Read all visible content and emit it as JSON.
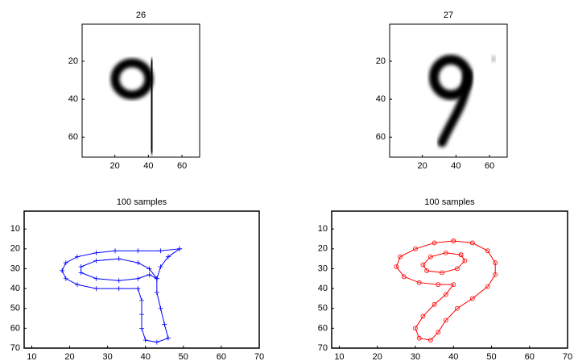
{
  "chart_data": [
    {
      "type": "image",
      "title": "26",
      "xlim": [
        0.5,
        70.5
      ],
      "ylim": [
        0.5,
        70.5
      ],
      "y_reversed": true,
      "xticks": [
        20,
        40,
        60
      ],
      "yticks": [
        20,
        40,
        60
      ]
    },
    {
      "type": "image",
      "title": "27",
      "xlim": [
        0.5,
        70.5
      ],
      "ylim": [
        0.5,
        70.5
      ],
      "y_reversed": true,
      "xticks": [
        20,
        40,
        60
      ],
      "yticks": [
        20,
        40,
        60
      ]
    },
    {
      "type": "line",
      "title": "100 samples",
      "xlim": [
        8,
        70
      ],
      "ylim": [
        1,
        70
      ],
      "y_reversed": true,
      "xticks": [
        10,
        20,
        30,
        40,
        50,
        60,
        70
      ],
      "yticks": [
        10,
        20,
        30,
        40,
        50,
        60,
        70
      ],
      "series": [
        {
          "color": "#0000ff",
          "marker": "plus",
          "x": [
            49,
            44,
            38,
            32,
            27,
            22,
            19,
            18,
            19,
            22,
            27,
            33,
            38,
            39,
            39,
            39,
            40,
            43,
            46,
            45,
            44,
            43,
            43,
            44,
            46,
            49,
            null,
            43,
            41,
            38,
            33,
            27,
            23,
            23,
            27,
            33,
            38,
            41,
            43
          ],
          "values": [
            20,
            21,
            21,
            21,
            22,
            24,
            27,
            31,
            35,
            38,
            40,
            40,
            40,
            46,
            53,
            60,
            66,
            67,
            65,
            58,
            50,
            42,
            35,
            29,
            24,
            20,
            null,
            35,
            30,
            27,
            25,
            26,
            29,
            32,
            35,
            36,
            35,
            33,
            35
          ]
        }
      ]
    },
    {
      "type": "line",
      "title": "100 samples",
      "xlim": [
        8,
        70
      ],
      "ylim": [
        1,
        70
      ],
      "y_reversed": true,
      "xticks": [
        10,
        20,
        30,
        40,
        50,
        60,
        70
      ],
      "yticks": [
        10,
        20,
        30,
        40,
        50,
        60,
        70
      ],
      "series": [
        {
          "color": "#ff0000",
          "marker": "circle",
          "x": [
            40,
            35,
            30,
            26,
            25,
            27,
            31,
            36,
            40,
            38,
            35,
            32,
            30,
            31,
            34,
            36,
            38,
            41,
            45,
            49,
            51,
            51,
            49,
            45,
            40,
            null,
            42,
            38,
            34,
            32,
            33,
            37,
            41,
            43,
            42
          ],
          "values": [
            16,
            17,
            20,
            24,
            29,
            34,
            37,
            38,
            38,
            43,
            48,
            54,
            60,
            65,
            66,
            62,
            56,
            50,
            45,
            39,
            33,
            27,
            21,
            17,
            16,
            null,
            23,
            22,
            24,
            28,
            31,
            32,
            30,
            26,
            23
          ]
        }
      ]
    }
  ]
}
